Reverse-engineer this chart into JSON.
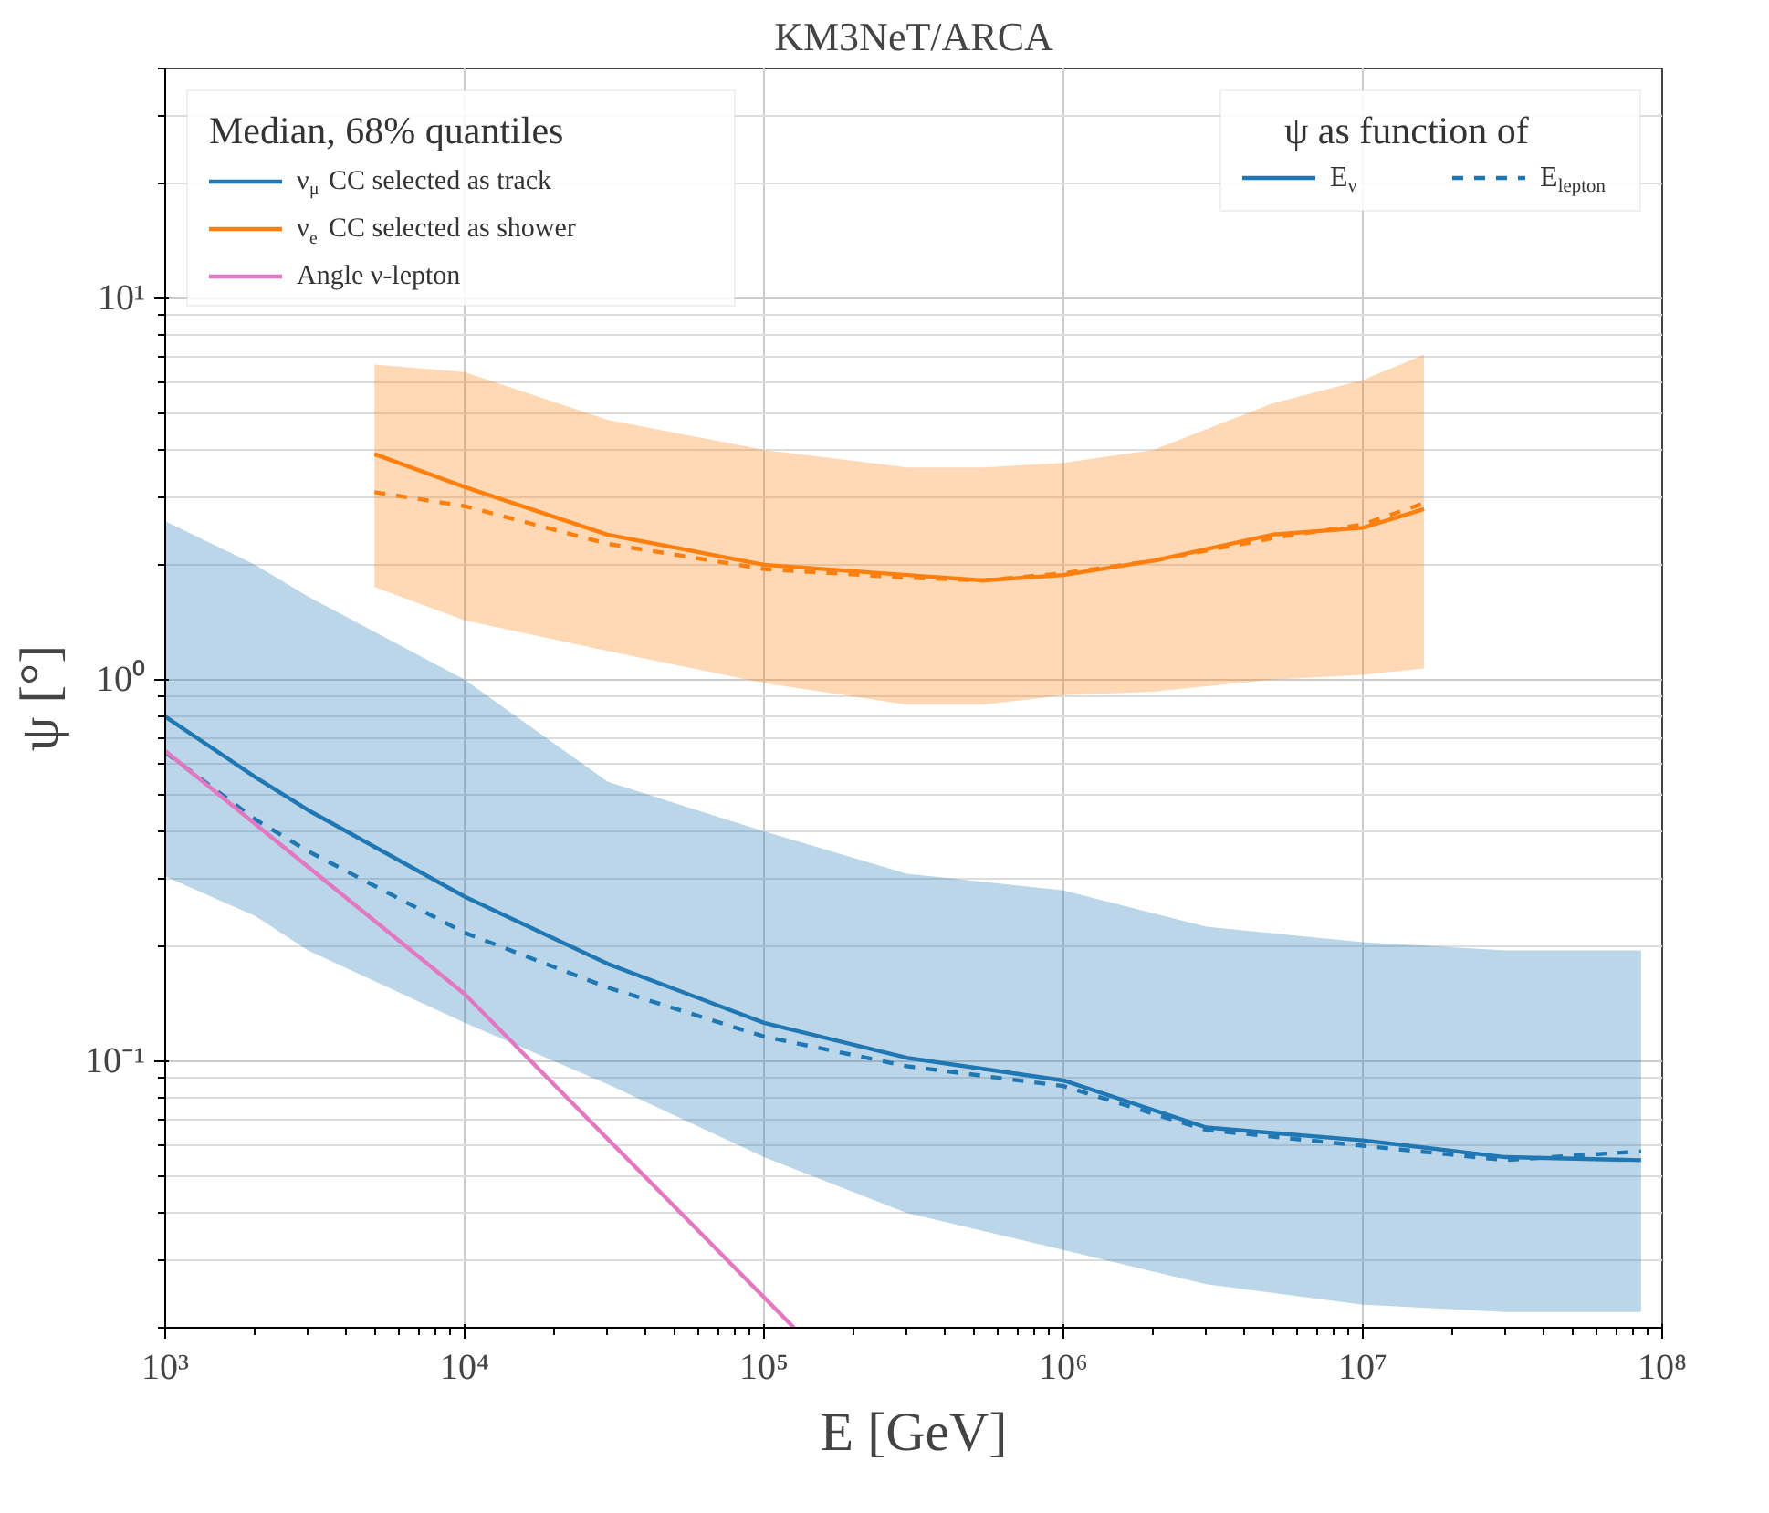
{
  "chart_data": {
    "type": "line",
    "title": "KM3NeT/ARCA",
    "xlabel": "E [GeV]",
    "ylabel": "ψ [°]",
    "log": "xy",
    "grid": true,
    "legend": "top left",
    "legend_title": "Median, 68% quantiles",
    "annotations": [
      "ψ as function of",
      "E$_{ν}$",
      "E$_{lepton}$"
    ],
    "xlim": [
      1000,
      100000000
    ],
    "ylim": [
      0.02,
      40
    ],
    "xticks": [
      {
        "value": 1000,
        "label": "10³"
      },
      {
        "value": 10000,
        "label": "10⁴"
      },
      {
        "value": 100000,
        "label": "10⁵"
      },
      {
        "value": 1000000,
        "label": "10⁶"
      },
      {
        "value": 10000000,
        "label": "10⁷"
      },
      {
        "value": 100000000,
        "label": "10⁸"
      }
    ],
    "yticks": [
      {
        "value": 0.1,
        "label": "10⁻¹"
      },
      {
        "value": 1,
        "label": "10⁰"
      },
      {
        "value": 10,
        "label": "10¹"
      }
    ],
    "series": [
      {
        "name": "ν$_{μ}$ CC selected as track",
        "color": "#1f77b4",
        "line_style": "solid",
        "x": [
          1000,
          2000,
          3000,
          10000,
          30000,
          100000,
          300000,
          1000000,
          3000000,
          10000000,
          30000000,
          85000000
        ],
        "values": [
          0.8,
          0.555,
          0.455,
          0.27,
          0.18,
          0.126,
          0.102,
          0.089,
          0.067,
          0.062,
          0.056,
          0.055
        ],
        "lower": [
          0.305,
          0.24,
          0.195,
          0.126,
          0.087,
          0.056,
          0.04,
          0.032,
          0.026,
          0.023,
          0.022,
          0.022
        ],
        "upper": [
          2.6,
          2.0,
          1.65,
          1.0,
          0.54,
          0.4,
          0.31,
          0.28,
          0.225,
          0.205,
          0.195,
          0.195
        ]
      },
      {
        "color": "#1f77b4",
        "line_style": "dashed",
        "x": [
          1000,
          2000,
          3000,
          10000,
          30000,
          100000,
          300000,
          1000000,
          3000000,
          10000000,
          30000000,
          85000000
        ],
        "values": [
          0.645,
          0.43,
          0.355,
          0.217,
          0.156,
          0.116,
          0.097,
          0.086,
          0.066,
          0.06,
          0.055,
          0.058
        ]
      },
      {
        "name": "ν$_{e}$ CC selected as shower",
        "color": "#ff7f0e",
        "line_style": "solid",
        "x": [
          5000,
          10000,
          30000,
          100000,
          300000,
          540000,
          1000000,
          2000000,
          5000000,
          10000000,
          16000000
        ],
        "values": [
          3.9,
          3.2,
          2.4,
          2.0,
          1.88,
          1.82,
          1.88,
          2.05,
          2.4,
          2.5,
          2.8
        ],
        "lower": [
          1.75,
          1.43,
          1.19,
          0.98,
          0.86,
          0.86,
          0.91,
          0.93,
          1.0,
          1.03,
          1.07
        ],
        "upper": [
          6.7,
          6.4,
          4.8,
          4.0,
          3.6,
          3.6,
          3.7,
          4.0,
          5.3,
          6.1,
          7.1
        ]
      },
      {
        "color": "#ff7f0e",
        "line_style": "dashed",
        "x": [
          5000,
          10000,
          30000,
          100000,
          300000,
          540000,
          1000000,
          2000000,
          5000000,
          10000000,
          16000000
        ],
        "values": [
          3.1,
          2.85,
          2.27,
          1.95,
          1.85,
          1.82,
          1.9,
          2.05,
          2.35,
          2.55,
          2.9
        ]
      },
      {
        "name": "Angle ν-lepton",
        "color": "#e377c2",
        "line_style": "solid",
        "x": [
          1000,
          10000,
          126000
        ],
        "values": [
          0.65,
          0.15,
          0.02
        ]
      }
    ]
  }
}
